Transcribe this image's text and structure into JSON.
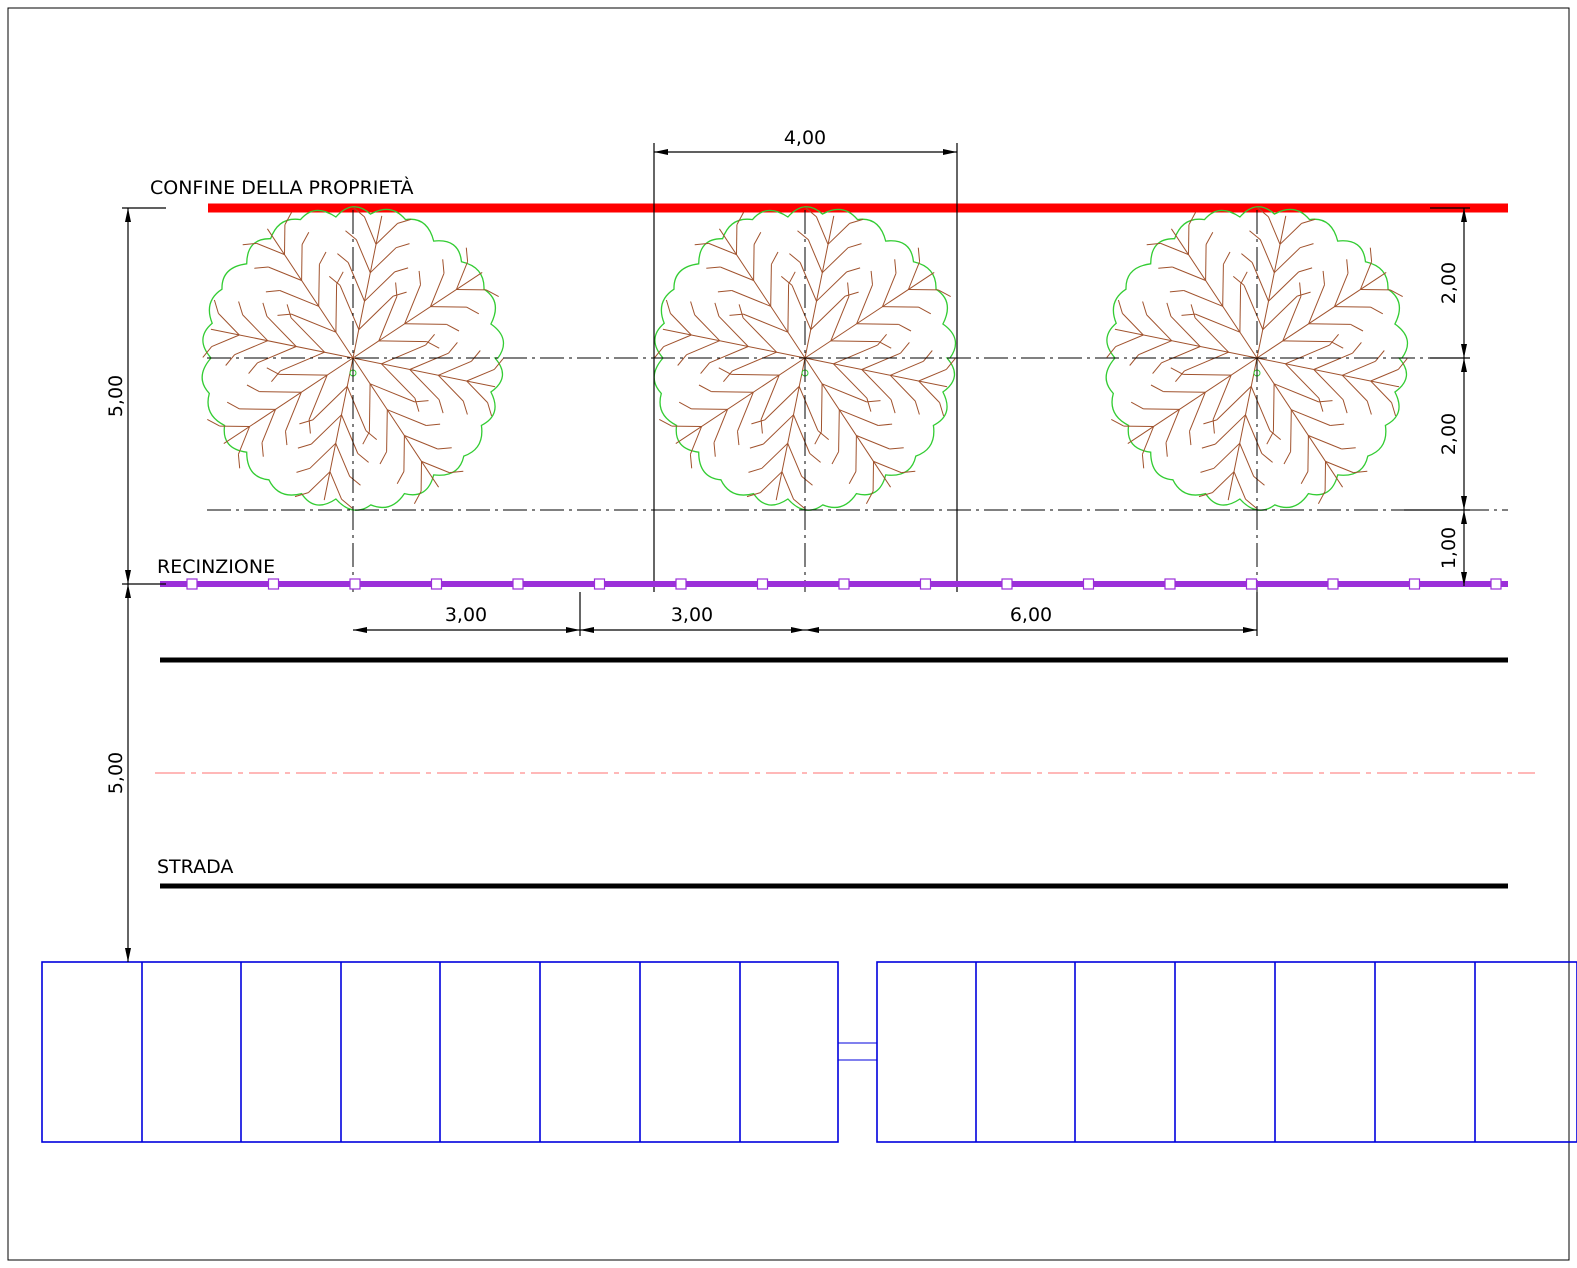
{
  "labels": {
    "property_boundary": "CONFINE DELLA PROPRIETÀ",
    "fence": "RECINZIONE",
    "road": "STRADA"
  },
  "dimensions": {
    "tree_canopy_width": "4,00",
    "boundary_to_axis": "2,00",
    "axis_to_canopy_edge": "2,00",
    "canopy_to_fence": "1,00",
    "boundary_to_fence": "5,00",
    "fence_to_building": "5,00",
    "bottom_1": "3,00",
    "bottom_2": "3,00",
    "bottom_3": "6,00"
  },
  "colors": {
    "boundary": "#ff0000",
    "fence": "#9b30d9",
    "canopy": "#33cc33",
    "branches": "#a0522d",
    "building": "#0000dd",
    "road": "#000000",
    "road_centerline": "#ff7070"
  },
  "icons": {
    "tree": "tree-plan-symbol",
    "fence_post": "square-post"
  }
}
